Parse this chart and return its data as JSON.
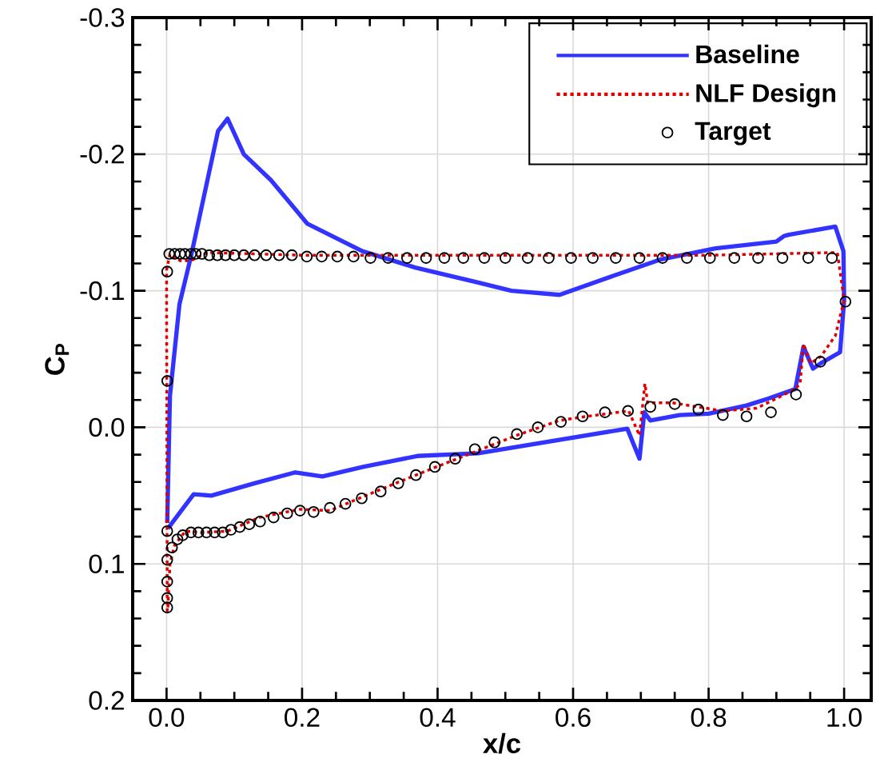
{
  "chart_data": {
    "type": "line",
    "xlabel": "x/c",
    "ylabel": "C$_{P}$",
    "xlim": [
      -0.05,
      1.04
    ],
    "ylim": [
      0.2,
      -0.3
    ],
    "xticks": [
      {
        "value": 0,
        "label": "0.0"
      },
      {
        "value": 0.2,
        "label": "0.2"
      },
      {
        "value": 0.4,
        "label": "0.4"
      },
      {
        "value": 0.6,
        "label": "0.6"
      },
      {
        "value": 0.8,
        "label": "0.8"
      },
      {
        "value": 1.0,
        "label": "1.0"
      }
    ],
    "yticks": [
      {
        "value": -0.3,
        "label": "-0.3"
      },
      {
        "value": -0.2,
        "label": "-0.2"
      },
      {
        "value": -0.1,
        "label": "-0.1"
      },
      {
        "value": 0,
        "label": "0.0"
      },
      {
        "value": 0.1,
        "label": "0.1"
      },
      {
        "value": 0.2,
        "label": "0.2"
      }
    ],
    "grid": true,
    "legend": "top right",
    "series": [
      {
        "name": "Baseline",
        "color": "#3333ff",
        "line_style": "solid",
        "marker": "none",
        "x": [
          0.001,
          0.005,
          0.019,
          0.036,
          0.076,
          0.09,
          0.114,
          0.154,
          0.208,
          0.289,
          0.367,
          0.46,
          0.509,
          0.58,
          0.66,
          0.73,
          0.81,
          0.9,
          0.911,
          0.918,
          0.987,
          0.999,
          1.0,
          0.994,
          0.966,
          0.954,
          0.94,
          0.928,
          0.888,
          0.856,
          0.8,
          0.757,
          0.714,
          0.705,
          0.698,
          0.68,
          0.46,
          0.37,
          0.29,
          0.23,
          0.19,
          0.13,
          0.066,
          0.04,
          0.002
        ],
        "values": [
          0.07,
          -0.023,
          -0.09,
          -0.125,
          -0.217,
          -0.226,
          -0.2,
          -0.181,
          -0.149,
          -0.129,
          -0.117,
          -0.106,
          -0.1,
          -0.097,
          -0.111,
          -0.123,
          -0.131,
          -0.136,
          -0.14,
          -0.141,
          -0.147,
          -0.129,
          -0.093,
          -0.055,
          -0.047,
          -0.043,
          -0.059,
          -0.028,
          -0.021,
          -0.016,
          -0.01,
          -0.009,
          -0.005,
          -0.011,
          0.023,
          0.001,
          0.019,
          0.021,
          0.029,
          0.036,
          0.033,
          0.041,
          0.05,
          0.049,
          0.074
        ]
      },
      {
        "name": "NLF Design",
        "color": "#e00000",
        "line_style": "dotted",
        "marker": "none",
        "x": [
          0.001,
          0.0,
          0.005,
          0.02,
          0.036,
          0.06,
          0.2,
          0.4,
          0.6,
          0.8,
          0.99,
          1.0,
          0.987,
          0.966,
          0.951,
          0.94,
          0.935,
          0.928,
          0.871,
          0.821,
          0.746,
          0.71,
          0.706,
          0.698,
          0.682,
          0.62,
          0.58,
          0.516,
          0.46,
          0.398,
          0.343,
          0.289,
          0.241,
          0.197,
          0.137,
          0.09,
          0.052,
          0.028,
          0.012,
          0.005,
          0.002
        ],
        "values": [
          0.135,
          -0.115,
          -0.127,
          -0.122,
          -0.122,
          -0.128,
          -0.126,
          -0.126,
          -0.126,
          -0.126,
          -0.128,
          -0.093,
          -0.067,
          -0.052,
          -0.047,
          -0.061,
          -0.032,
          -0.028,
          -0.014,
          -0.012,
          -0.018,
          -0.018,
          -0.032,
          0.006,
          -0.012,
          -0.008,
          -0.005,
          0.006,
          0.017,
          0.029,
          0.04,
          0.051,
          0.061,
          0.06,
          0.066,
          0.076,
          0.077,
          0.076,
          0.086,
          0.1,
          0.132
        ]
      },
      {
        "name": "Target",
        "type": "scatter",
        "color": "#000000",
        "marker": "circle",
        "x": [
          0.001,
          0.001,
          0.004,
          0.012,
          0.02,
          0.027,
          0.036,
          0.043,
          0.052,
          0.063,
          0.075,
          0.087,
          0.1,
          0.114,
          0.13,
          0.147,
          0.166,
          0.185,
          0.207,
          0.229,
          0.252,
          0.276,
          0.301,
          0.327,
          0.355,
          0.383,
          0.41,
          0.438,
          0.469,
          0.5,
          0.533,
          0.564,
          0.597,
          0.629,
          0.663,
          0.698,
          0.732,
          0.768,
          0.802,
          0.838,
          0.873,
          0.909,
          0.947,
          0.982,
          1.002,
          0.965,
          0.929,
          0.892,
          0.856,
          0.821,
          0.785,
          0.75,
          0.714,
          0.681,
          0.647,
          0.614,
          0.582,
          0.548,
          0.517,
          0.484,
          0.455,
          0.426,
          0.396,
          0.368,
          0.342,
          0.316,
          0.288,
          0.264,
          0.241,
          0.217,
          0.197,
          0.178,
          0.158,
          0.138,
          0.122,
          0.108,
          0.095,
          0.083,
          0.071,
          0.059,
          0.047,
          0.036,
          0.024,
          0.016,
          0.008,
          0.001,
          0.001,
          0.001,
          0.001,
          0.001
        ],
        "values": [
          -0.034,
          -0.114,
          -0.127,
          -0.127,
          -0.127,
          -0.127,
          -0.127,
          -0.127,
          -0.127,
          -0.126,
          -0.126,
          -0.126,
          -0.126,
          -0.126,
          -0.126,
          -0.126,
          -0.126,
          -0.126,
          -0.125,
          -0.125,
          -0.125,
          -0.125,
          -0.124,
          -0.124,
          -0.124,
          -0.124,
          -0.124,
          -0.124,
          -0.124,
          -0.124,
          -0.124,
          -0.124,
          -0.124,
          -0.124,
          -0.124,
          -0.124,
          -0.124,
          -0.124,
          -0.124,
          -0.124,
          -0.124,
          -0.124,
          -0.124,
          -0.124,
          -0.092,
          -0.048,
          -0.024,
          -0.011,
          -0.008,
          -0.009,
          -0.013,
          -0.017,
          -0.015,
          -0.012,
          -0.011,
          -0.008,
          -0.004,
          0.0,
          0.005,
          0.011,
          0.016,
          0.023,
          0.029,
          0.035,
          0.041,
          0.047,
          0.052,
          0.056,
          0.059,
          0.062,
          0.061,
          0.063,
          0.066,
          0.069,
          0.071,
          0.073,
          0.075,
          0.077,
          0.077,
          0.077,
          0.077,
          0.077,
          0.079,
          0.082,
          0.088,
          0.076,
          0.097,
          0.113,
          0.125,
          0.132
        ]
      }
    ]
  }
}
